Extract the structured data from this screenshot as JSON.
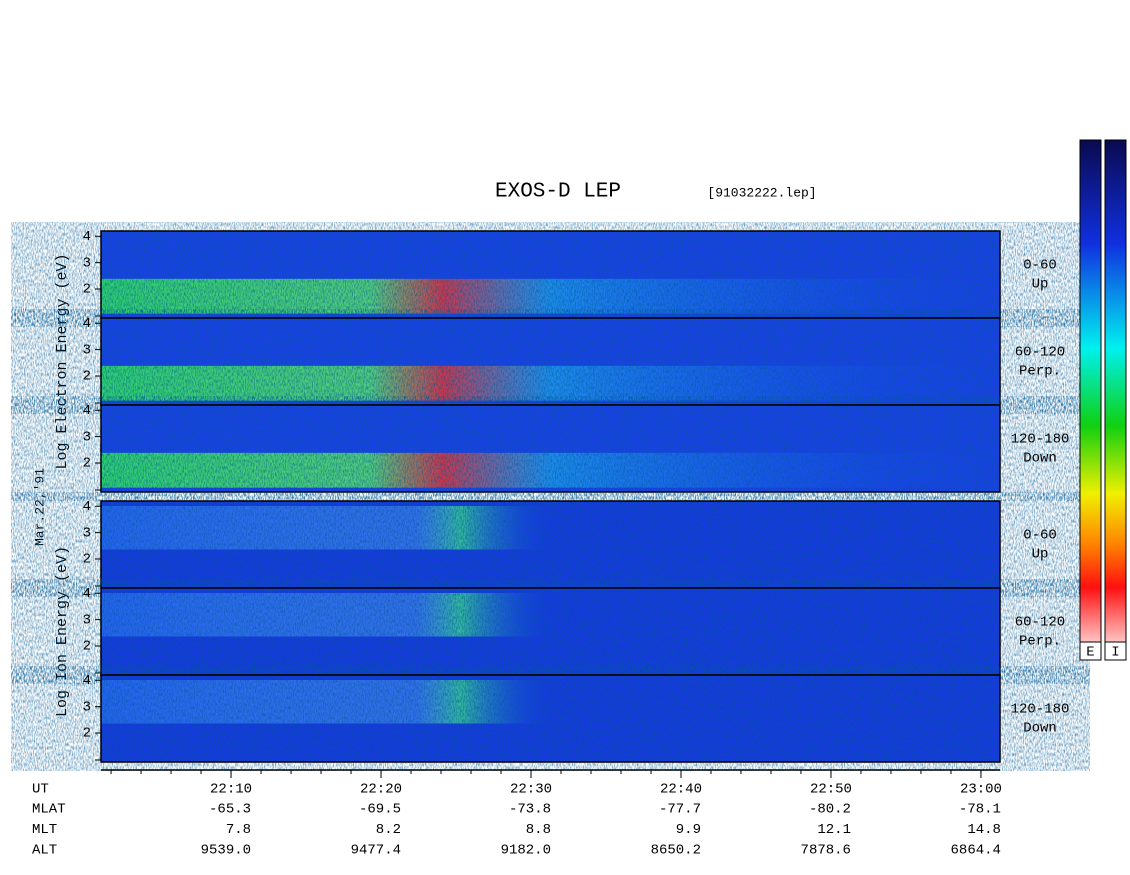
{
  "title": "EXOS-D LEP",
  "file": "[91032222.lep]",
  "date": "Mar.22,'91",
  "groups": [
    {
      "label": "Log  Electron  Energy (eV)",
      "panels": [
        {
          "angle": "0-60",
          "direction": "Up"
        },
        {
          "angle": "60-120",
          "direction": "Perp."
        },
        {
          "angle": "120-180",
          "direction": "Down"
        }
      ]
    },
    {
      "label": "Log  Ion  Energy (eV)",
      "panels": [
        {
          "angle": "0-60",
          "direction": "Up"
        },
        {
          "angle": "60-120",
          "direction": "Perp."
        },
        {
          "angle": "120-180",
          "direction": "Down"
        }
      ]
    }
  ],
  "ylim": [
    0.9,
    4.2
  ],
  "yticks": [
    2,
    3,
    4
  ],
  "xlim": [
    1321.33,
    1381.27
  ],
  "xticks": [
    {
      "value": 1330,
      "label": "22:10"
    },
    {
      "value": 1340,
      "label": "22:20"
    },
    {
      "value": 1350,
      "label": "22:30"
    },
    {
      "value": 1360,
      "label": "22:40"
    },
    {
      "value": 1370,
      "label": "22:50"
    },
    {
      "value": 1380,
      "label": "23:00"
    }
  ],
  "orbit": {
    "labels": [
      "UT",
      "MLAT",
      "MLT",
      "ALT"
    ],
    "rows": [
      [
        "-65.3",
        "-69.5",
        "-73.8",
        "-77.7",
        "-80.2",
        "-78.1"
      ],
      [
        "7.8",
        "8.2",
        "8.8",
        "9.9",
        "12.1",
        "14.8"
      ],
      [
        "9539.0",
        "9477.4",
        "9182.0",
        "8650.2",
        "7878.6",
        "6864.4"
      ]
    ]
  },
  "colorbars": [
    "E",
    "I"
  ]
}
